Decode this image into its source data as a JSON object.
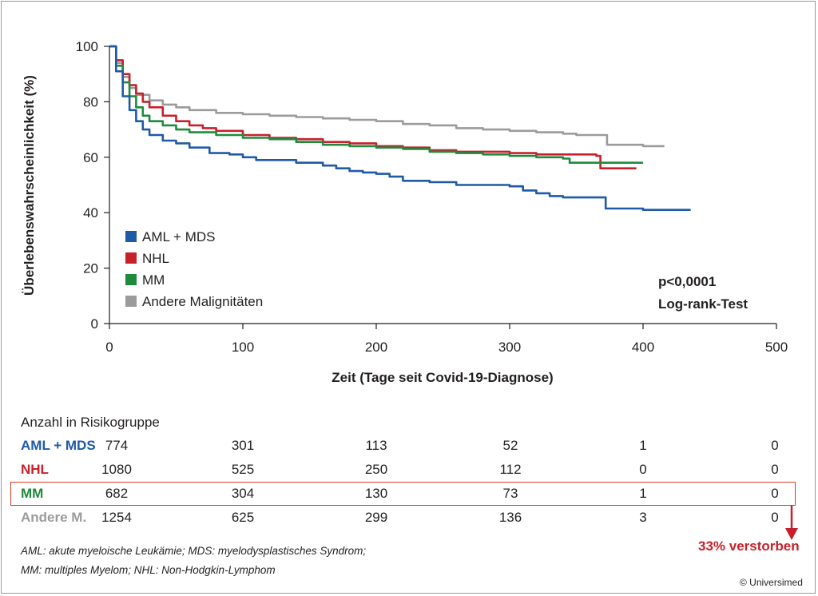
{
  "chart_data": {
    "type": "line",
    "xlabel": "Zeit (Tage seit Covid-19-Diagnose)",
    "ylabel": "Überlebenswahrscheinlichkeit (%)",
    "xlim": [
      0,
      500
    ],
    "ylim": [
      0,
      100
    ],
    "xticks": [
      0,
      100,
      200,
      300,
      400,
      500
    ],
    "yticks": [
      0,
      20,
      40,
      60,
      80,
      100
    ],
    "legend_position": "bottom-left",
    "annotation_lines": [
      "p<0,0001",
      "Log-rank-Test"
    ],
    "series": [
      {
        "name": "AML + MDS",
        "color": "#1f5aa6",
        "x": [
          0,
          5,
          10,
          15,
          20,
          25,
          30,
          40,
          50,
          60,
          75,
          90,
          100,
          110,
          120,
          140,
          160,
          170,
          180,
          190,
          200,
          210,
          220,
          240,
          260,
          280,
          300,
          310,
          320,
          330,
          340,
          372,
          372,
          380,
          400,
          435
        ],
        "y": [
          100,
          91,
          82,
          77,
          73,
          70,
          68,
          66,
          65,
          63.5,
          61.5,
          61,
          60,
          59,
          59,
          58,
          57,
          56,
          55,
          54.5,
          54,
          53,
          51.5,
          51,
          50,
          50,
          49.5,
          48,
          47,
          46,
          45.5,
          45.5,
          41.5,
          41.5,
          41,
          40.7
        ]
      },
      {
        "name": "NHL",
        "color": "#c8202b",
        "x": [
          0,
          5,
          10,
          15,
          20,
          25,
          30,
          40,
          50,
          60,
          70,
          80,
          100,
          120,
          140,
          160,
          180,
          200,
          220,
          240,
          260,
          280,
          300,
          320,
          340,
          365,
          368,
          395
        ],
        "y": [
          100,
          95,
          90,
          86,
          83,
          80,
          78,
          75,
          73,
          71.5,
          70.5,
          69.5,
          68,
          67,
          66.5,
          65.5,
          65,
          64,
          63.5,
          62.5,
          62,
          62,
          61.5,
          61,
          61,
          60.5,
          56,
          56
        ]
      },
      {
        "name": "MM",
        "color": "#1f8a3c",
        "x": [
          0,
          5,
          10,
          15,
          20,
          25,
          30,
          40,
          50,
          60,
          80,
          100,
          120,
          140,
          160,
          180,
          200,
          220,
          240,
          260,
          280,
          300,
          320,
          340,
          345,
          400
        ],
        "y": [
          100,
          93,
          87,
          82,
          78,
          75,
          73,
          71.5,
          70,
          69,
          68,
          67,
          66.5,
          65.5,
          64.5,
          64,
          63.5,
          63,
          62,
          61.5,
          61,
          60.5,
          60,
          59.5,
          58,
          58
        ]
      },
      {
        "name": "Andere Malignitäten",
        "color": "#9b9b9b",
        "x": [
          0,
          5,
          10,
          15,
          20,
          30,
          40,
          50,
          60,
          80,
          100,
          120,
          140,
          160,
          180,
          200,
          220,
          240,
          260,
          280,
          300,
          320,
          340,
          350,
          372,
          373,
          380,
          400,
          416
        ],
        "y": [
          100,
          94,
          89,
          85,
          82.5,
          80.5,
          79,
          78,
          77,
          76,
          75.5,
          75,
          74.5,
          74,
          73.5,
          73,
          72,
          71.5,
          70.5,
          70,
          69.5,
          69,
          68.5,
          68,
          68,
          64.5,
          64.5,
          64,
          64
        ]
      }
    ]
  },
  "risk_table": {
    "title": "Anzahl in Risikogruppe",
    "rows": [
      {
        "name": "AML + MDS",
        "color": "#1f5aa6",
        "values": [
          "774",
          "301",
          "113",
          "52",
          "1",
          "0"
        ]
      },
      {
        "name": "NHL",
        "color": "#c8202b",
        "values": [
          "1080",
          "525",
          "250",
          "112",
          "0",
          "0"
        ]
      },
      {
        "name": "MM",
        "color": "#1f8a3c",
        "values": [
          "682",
          "304",
          "130",
          "73",
          "1",
          "0"
        ]
      },
      {
        "name": "Andere M.",
        "color": "#9b9b9b",
        "values": [
          "1254",
          "625",
          "299",
          "136",
          "3",
          "0"
        ]
      }
    ]
  },
  "highlight_color": "#d93a2b",
  "died_label": "33% verstorben",
  "footnotes": [
    "AML: akute myeloische Leukämie; MDS: myelodysplastisches Syndrom;",
    "MM: multiples Myelom; NHL: Non-Hodgkin-Lymphom"
  ],
  "copyright": "© Universimed"
}
